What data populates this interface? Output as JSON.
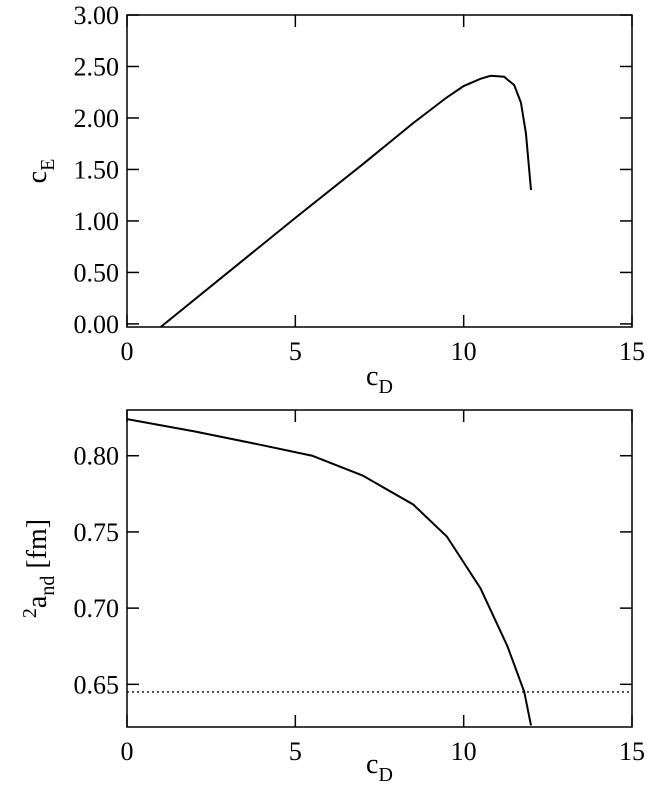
{
  "chart_data": [
    {
      "type": "line",
      "xlabel": "c",
      "xlabel_sub": "D",
      "ylabel_parts": [
        "c",
        "E"
      ],
      "ylabel_styles": [
        "normal",
        "sub"
      ],
      "xlim": [
        0,
        15
      ],
      "xticks": [
        0,
        5,
        10,
        15
      ],
      "ylim": [
        -0.03,
        3.0
      ],
      "yticks": [
        {
          "value": 0,
          "label": "0.00"
        },
        {
          "value": 0.5,
          "label": "0.50"
        },
        {
          "value": 1,
          "label": "1.00"
        },
        {
          "value": 1.5,
          "label": "1.50"
        },
        {
          "value": 2,
          "label": "2.00"
        },
        {
          "value": 2.5,
          "label": "2.50"
        },
        {
          "value": 3,
          "label": "3.00"
        }
      ],
      "series": [
        {
          "color": "#000000",
          "x": [
            1,
            3,
            5,
            7,
            8.5,
            9.5,
            10,
            10.5,
            10.8,
            11.2,
            11.5,
            11.7,
            11.85,
            12
          ],
          "values": [
            -0.03,
            0.5,
            1.03,
            1.55,
            1.95,
            2.2,
            2.31,
            2.38,
            2.41,
            2.4,
            2.32,
            2.15,
            1.85,
            1.3
          ]
        }
      ]
    },
    {
      "type": "line",
      "xlabel": "c",
      "xlabel_sub": "D",
      "ylabel_parts": [
        "2",
        "a",
        "nd",
        " [fm]"
      ],
      "ylabel_styles": [
        "super",
        "normal",
        "sub",
        "normal"
      ],
      "xlim": [
        0,
        15
      ],
      "xticks": [
        0,
        5,
        10,
        15
      ],
      "ylim": [
        0.622,
        0.83
      ],
      "yticks": [
        0.65,
        {
          "value": 0.7,
          "label": "0.70"
        },
        0.75,
        {
          "value": 0.8,
          "label": "0.80"
        }
      ],
      "series": [
        {
          "color": "#000000",
          "x": [
            0,
            2,
            4,
            5.5,
            7,
            8.5,
            9.5,
            10.5,
            11.3,
            11.8,
            12
          ],
          "values": [
            0.824,
            0.816,
            0.807,
            0.8,
            0.787,
            0.768,
            0.747,
            0.713,
            0.675,
            0.645,
            0.623
          ]
        }
      ],
      "reference_line": {
        "value": 0.645,
        "style": "dotted"
      }
    }
  ]
}
